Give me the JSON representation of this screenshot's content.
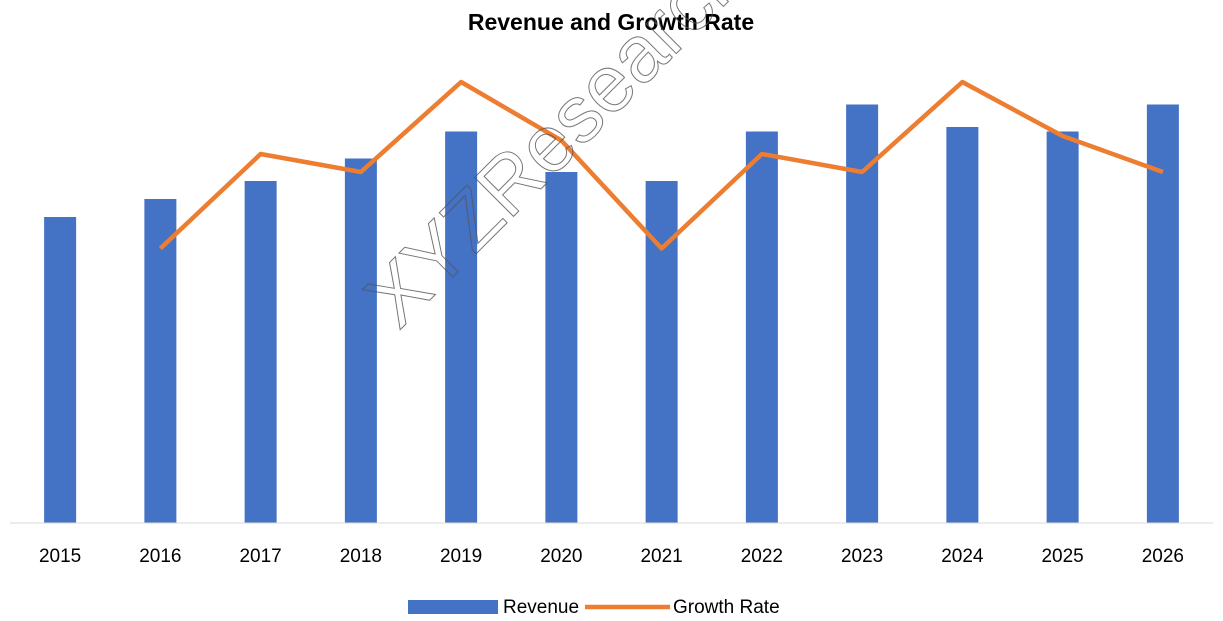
{
  "chart_data": {
    "type": "bar_line",
    "title": "Revenue and Growth Rate",
    "watermark": "XYZResearch",
    "categories": [
      "2015",
      "2016",
      "2017",
      "2018",
      "2019",
      "2020",
      "2021",
      "2022",
      "2023",
      "2024",
      "2025",
      "2026"
    ],
    "series": [
      {
        "name": "Revenue",
        "type": "bar",
        "color": "#4472c4",
        "values": [
          68,
          72,
          76,
          81,
          87,
          78,
          76,
          87,
          93,
          88,
          87,
          93
        ]
      },
      {
        "name": "Growth Rate",
        "type": "line",
        "axis": "y2",
        "color": "#ed7d31",
        "values": [
          null,
          61,
          82,
          78,
          98,
          85,
          61,
          82,
          78,
          98,
          86,
          78
        ]
      }
    ],
    "ylim": [
      0,
      100
    ],
    "y2lim": [
      0,
      100
    ],
    "legend": "bottom"
  }
}
